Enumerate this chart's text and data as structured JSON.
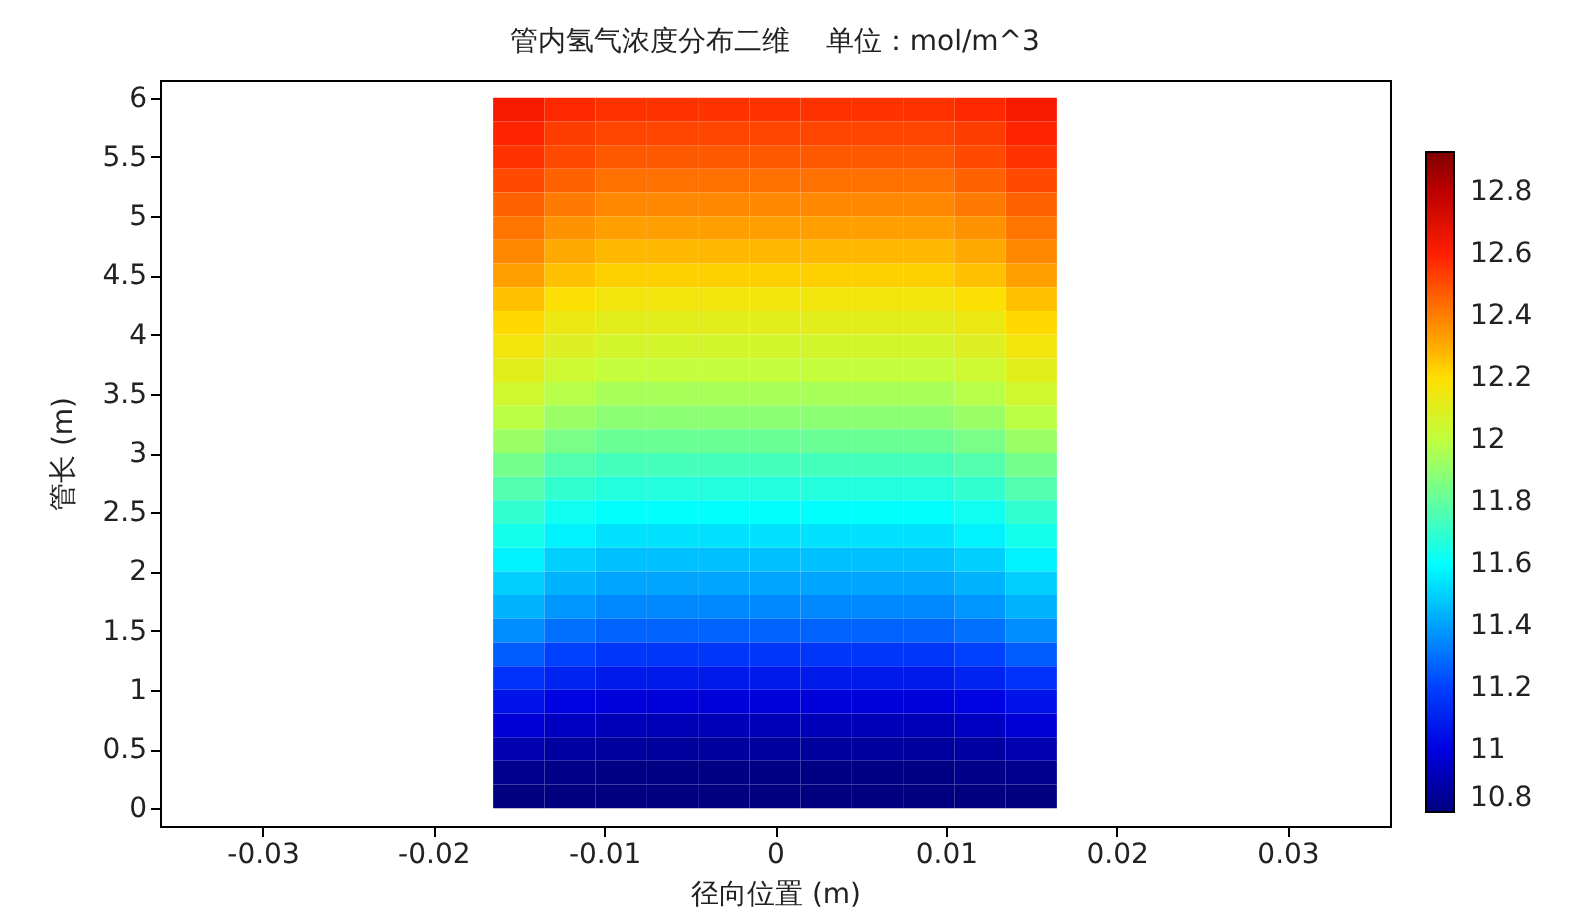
{
  "chart_data": {
    "type": "heatmap",
    "title": "管内氢气浓度分布二维    单位：mol/m^3",
    "xlabel": "径向位置 (m)",
    "ylabel": "管长 (m)",
    "x": [
      -0.015,
      -0.012,
      -0.009,
      -0.006,
      -0.003,
      0,
      0.003,
      0.006,
      0.009,
      0.012,
      0.015
    ],
    "y": [
      5.9,
      5.7,
      5.5,
      5.3,
      5.1,
      4.9,
      4.7,
      4.5,
      4.3,
      4.1,
      3.9,
      3.7,
      3.5,
      3.3,
      3.1,
      2.9,
      2.7,
      2.5,
      2.3,
      2.1,
      1.9,
      1.7,
      1.5,
      1.3,
      1.1,
      0.9,
      0.7,
      0.5,
      0.3,
      0.1
    ],
    "cells": [
      [
        12.63,
        12.58,
        12.56,
        12.56,
        12.56,
        12.56,
        12.56,
        12.56,
        12.56,
        12.58,
        12.63
      ],
      [
        12.59,
        12.54,
        12.52,
        12.52,
        12.52,
        12.52,
        12.52,
        12.52,
        12.52,
        12.54,
        12.59
      ],
      [
        12.56,
        12.51,
        12.48,
        12.48,
        12.48,
        12.48,
        12.48,
        12.48,
        12.48,
        12.51,
        12.56
      ],
      [
        12.51,
        12.46,
        12.43,
        12.43,
        12.43,
        12.43,
        12.43,
        12.43,
        12.43,
        12.46,
        12.51
      ],
      [
        12.46,
        12.41,
        12.38,
        12.38,
        12.38,
        12.38,
        12.38,
        12.38,
        12.38,
        12.41,
        12.46
      ],
      [
        12.42,
        12.36,
        12.33,
        12.33,
        12.33,
        12.33,
        12.33,
        12.33,
        12.33,
        12.36,
        12.42
      ],
      [
        12.38,
        12.31,
        12.28,
        12.28,
        12.28,
        12.28,
        12.28,
        12.28,
        12.28,
        12.31,
        12.38
      ],
      [
        12.33,
        12.26,
        12.23,
        12.23,
        12.23,
        12.23,
        12.23,
        12.23,
        12.23,
        12.26,
        12.33
      ],
      [
        12.26,
        12.19,
        12.16,
        12.16,
        12.16,
        12.16,
        12.16,
        12.16,
        12.16,
        12.19,
        12.26
      ],
      [
        12.21,
        12.14,
        12.11,
        12.11,
        12.11,
        12.11,
        12.11,
        12.11,
        12.11,
        12.14,
        12.21
      ],
      [
        12.16,
        12.09,
        12.06,
        12.06,
        12.06,
        12.06,
        12.06,
        12.06,
        12.06,
        12.09,
        12.16
      ],
      [
        12.11,
        12.04,
        12.01,
        12.01,
        12.01,
        12.01,
        12.01,
        12.01,
        12.01,
        12.04,
        12.11
      ],
      [
        12.05,
        11.98,
        11.95,
        11.95,
        11.95,
        11.95,
        11.95,
        11.95,
        11.95,
        11.98,
        12.05
      ],
      [
        11.99,
        11.92,
        11.89,
        11.89,
        11.89,
        11.89,
        11.89,
        11.89,
        11.89,
        11.92,
        11.99
      ],
      [
        11.92,
        11.85,
        11.82,
        11.82,
        11.82,
        11.82,
        11.82,
        11.82,
        11.82,
        11.85,
        11.92
      ],
      [
        11.84,
        11.77,
        11.74,
        11.74,
        11.74,
        11.74,
        11.74,
        11.74,
        11.74,
        11.77,
        11.84
      ],
      [
        11.77,
        11.7,
        11.67,
        11.67,
        11.67,
        11.67,
        11.67,
        11.67,
        11.67,
        11.7,
        11.77
      ],
      [
        11.7,
        11.63,
        11.6,
        11.6,
        11.6,
        11.6,
        11.6,
        11.6,
        11.6,
        11.63,
        11.7
      ],
      [
        11.64,
        11.57,
        11.54,
        11.54,
        11.54,
        11.54,
        11.54,
        11.54,
        11.54,
        11.57,
        11.64
      ],
      [
        11.57,
        11.5,
        11.47,
        11.47,
        11.47,
        11.47,
        11.47,
        11.47,
        11.47,
        11.5,
        11.57
      ],
      [
        11.5,
        11.44,
        11.41,
        11.41,
        11.41,
        11.41,
        11.41,
        11.41,
        11.41,
        11.44,
        11.5
      ],
      [
        11.44,
        11.38,
        11.35,
        11.35,
        11.35,
        11.35,
        11.35,
        11.35,
        11.35,
        11.38,
        11.44
      ],
      [
        11.36,
        11.3,
        11.27,
        11.27,
        11.27,
        11.27,
        11.27,
        11.27,
        11.27,
        11.3,
        11.36
      ],
      [
        11.26,
        11.2,
        11.17,
        11.17,
        11.17,
        11.17,
        11.17,
        11.17,
        11.17,
        11.2,
        11.26
      ],
      [
        11.16,
        11.11,
        11.08,
        11.08,
        11.08,
        11.08,
        11.08,
        11.08,
        11.08,
        11.11,
        11.16
      ],
      [
        11.06,
        11.01,
        10.99,
        10.99,
        10.99,
        10.99,
        10.99,
        10.99,
        10.99,
        11.01,
        11.06
      ],
      [
        10.98,
        10.94,
        10.92,
        10.92,
        10.92,
        10.92,
        10.92,
        10.92,
        10.92,
        10.94,
        10.98
      ],
      [
        10.9,
        10.87,
        10.86,
        10.86,
        10.86,
        10.86,
        10.86,
        10.86,
        10.86,
        10.87,
        10.9
      ],
      [
        10.83,
        10.82,
        10.81,
        10.81,
        10.81,
        10.81,
        10.81,
        10.81,
        10.81,
        10.82,
        10.83
      ],
      [
        10.8,
        10.8,
        10.8,
        10.8,
        10.8,
        10.8,
        10.8,
        10.8,
        10.8,
        10.8,
        10.8
      ]
    ],
    "clim": [
      10.8,
      12.93
    ],
    "cticks": [
      10.8,
      11,
      11.2,
      11.4,
      11.6,
      11.8,
      12,
      12.2,
      12.4,
      12.6,
      12.8
    ],
    "xlim": [
      -0.036,
      0.036
    ],
    "xticks": [
      -0.03,
      -0.02,
      -0.01,
      0,
      0.01,
      0.02,
      0.03
    ],
    "ylim": [
      -0.15,
      6.15
    ],
    "yticks": [
      0,
      0.5,
      1,
      1.5,
      2,
      2.5,
      3,
      3.5,
      4,
      4.5,
      5,
      5.5,
      6
    ]
  }
}
